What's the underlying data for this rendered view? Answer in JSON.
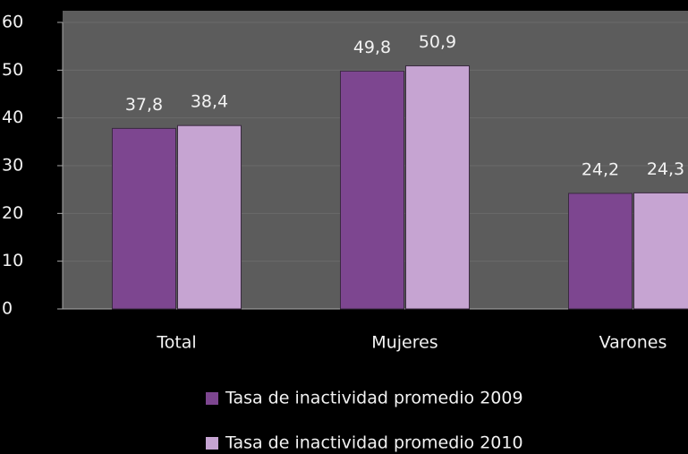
{
  "chart_data": {
    "type": "bar",
    "categories": [
      "Total",
      "Mujeres",
      "Varones"
    ],
    "series": [
      {
        "name": "Tasa de inactividad promedio 2009",
        "color": "#7d4690",
        "values": [
          37.8,
          49.8,
          24.2
        ],
        "value_labels": [
          "37,8",
          "49,8",
          "24,2"
        ]
      },
      {
        "name": "Tasa de inactividad promedio 2010",
        "color": "#c6a4d2",
        "values": [
          38.4,
          50.9,
          24.3
        ],
        "value_labels": [
          "38,4",
          "50,9",
          "24,3"
        ]
      }
    ],
    "ylim": [
      0,
      60
    ],
    "yticks": [
      0,
      10,
      20,
      30,
      40,
      50,
      60
    ],
    "grid": true,
    "legend": "bottom"
  }
}
